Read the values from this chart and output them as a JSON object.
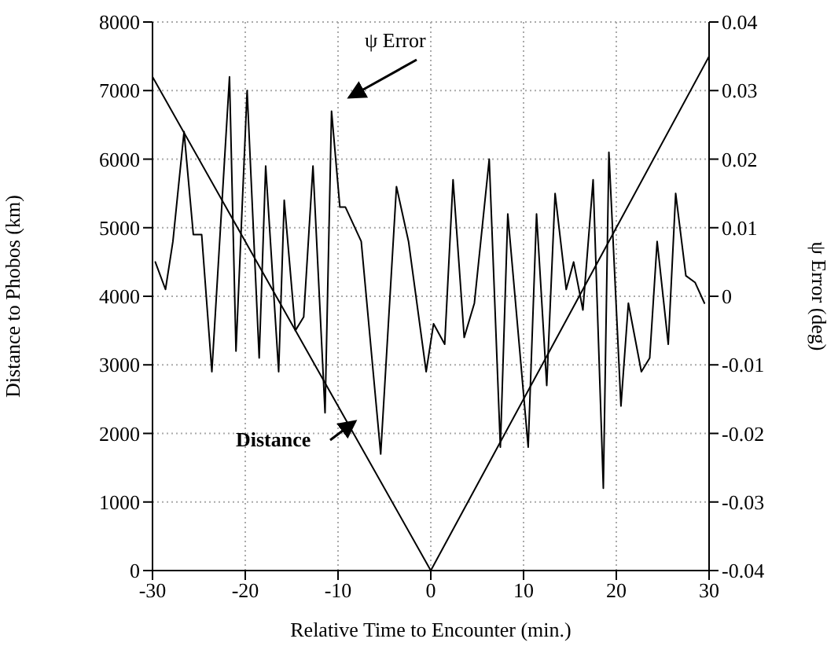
{
  "chart_data": {
    "type": "line",
    "xlabel": "Relative Time to Encounter (min.)",
    "ylabel": "Distance to Phobos (km)",
    "y2label": "ψ Error (deg)",
    "xlim": [
      -30,
      30
    ],
    "xticks": [
      -30,
      -20,
      -10,
      0,
      10,
      20,
      30
    ],
    "ylim": [
      0,
      8000
    ],
    "yticks": [
      0,
      1000,
      2000,
      3000,
      4000,
      5000,
      6000,
      7000,
      8000
    ],
    "y2lim": [
      -0.04,
      0.04
    ],
    "y2ticks": [
      -0.04,
      -0.03,
      -0.02,
      -0.01,
      0,
      0.01,
      0.02,
      0.03,
      0.04
    ],
    "grid": true,
    "marker": "none",
    "line_style": "solid",
    "series": [
      {
        "name": "ψ Error",
        "color": "#000000",
        "axis": "y2",
        "x": [
          -29.7,
          -28.6,
          -27.8,
          -26.6,
          -25.6,
          -24.7,
          -23.6,
          -21.7,
          -21,
          -19.8,
          -18.5,
          -17.8,
          -16.4,
          -15.8,
          -14.6,
          -13.7,
          -12.7,
          -11.4,
          -10.7,
          -9.8,
          -9.2,
          -7.5,
          -5.4,
          -3.7,
          -2.4,
          -0.5,
          0.3,
          1.5,
          2.4,
          3.6,
          4.7,
          6.3,
          7.5,
          8.3,
          10.5,
          11.4,
          12.5,
          13.4,
          14.6,
          15.4,
          16.4,
          17.5,
          18.6,
          19.2,
          20.5,
          21.3,
          22.7,
          23.6,
          24.4,
          25.6,
          26.4,
          27.5,
          28.5,
          29.5
        ],
        "values": [
          0.005,
          0.001,
          0.008,
          0.024,
          0.009,
          0.009,
          -0.011,
          0.032,
          -0.008,
          0.03,
          -0.009,
          0.019,
          -0.011,
          0.014,
          -0.005,
          -0.003,
          0.019,
          -0.017,
          0.027,
          0.013,
          0.013,
          0.008,
          -0.023,
          0.016,
          0.008,
          -0.011,
          -0.004,
          -0.007,
          0.017,
          -0.006,
          -0.001,
          0.02,
          -0.022,
          0.012,
          -0.022,
          0.012,
          -0.013,
          0.015,
          0.001,
          0.005,
          -0.002,
          0.017,
          -0.028,
          0.021,
          -0.016,
          -0.001,
          -0.011,
          -0.009,
          0.008,
          -0.007,
          0.015,
          0.003,
          0.002,
          -0.001
        ]
      },
      {
        "name": "Distance",
        "color": "#000000",
        "x": [
          -30,
          0,
          30
        ],
        "values": [
          7200,
          0,
          7500
        ]
      }
    ]
  }
}
